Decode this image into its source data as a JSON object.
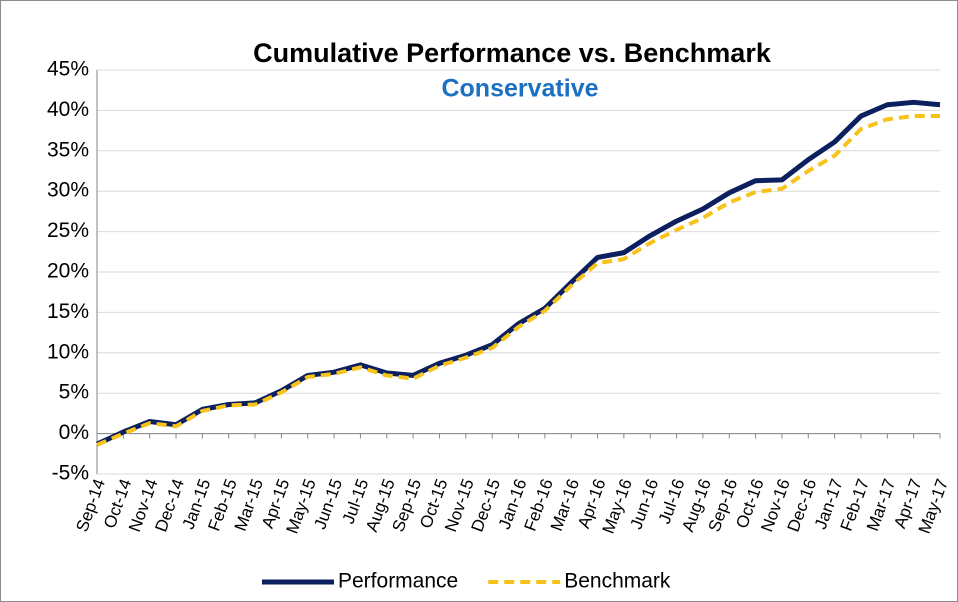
{
  "chart_data": {
    "type": "line",
    "title": "Cumulative Performance vs. Benchmark",
    "subtitle": "Conservative",
    "categories": [
      "Sep-14",
      "Oct-14",
      "Nov-14",
      "Dec-14",
      "Jan-15",
      "Feb-15",
      "Mar-15",
      "Apr-15",
      "May-15",
      "Jun-15",
      "Jul-15",
      "Aug-15",
      "Sep-15",
      "Oct-15",
      "Nov-15",
      "Dec-15",
      "Jan-16",
      "Feb-16",
      "Mar-16",
      "Apr-16",
      "May-16",
      "Jun-16",
      "Jul-16",
      "Aug-16",
      "Sep-16",
      "Oct-16",
      "Nov-16",
      "Dec-16",
      "Jan-17",
      "Feb-17",
      "Mar-17",
      "Apr-17",
      "May-17"
    ],
    "series": [
      {
        "name": "Performance",
        "color": "#0c1f5e",
        "line_style": "solid",
        "values": [
          -1.3,
          0.2,
          1.5,
          1.1,
          3.0,
          3.6,
          3.8,
          5.3,
          7.2,
          7.6,
          8.5,
          7.5,
          7.2,
          8.7,
          9.7,
          11.0,
          13.6,
          15.5,
          18.7,
          21.8,
          22.4,
          24.5,
          26.3,
          27.8,
          29.8,
          31.3,
          31.4,
          33.9,
          36.1,
          39.3,
          40.7,
          41.0,
          40.7
        ]
      },
      {
        "name": "Benchmark",
        "color": "#f7c21a",
        "line_style": "dashed",
        "values": [
          -1.4,
          0.0,
          1.3,
          0.9,
          2.8,
          3.5,
          3.6,
          5.1,
          7.0,
          7.4,
          8.2,
          7.2,
          6.8,
          8.4,
          9.4,
          10.6,
          13.2,
          15.2,
          18.3,
          21.1,
          21.6,
          23.6,
          25.2,
          26.7,
          28.6,
          29.9,
          30.3,
          32.5,
          34.4,
          37.7,
          38.9,
          39.3,
          39.3
        ]
      }
    ],
    "ylim": [
      -5,
      45
    ],
    "yticks": [
      {
        "value": -5,
        "label": "-5%"
      },
      {
        "value": 0,
        "label": "0%"
      },
      {
        "value": 5,
        "label": "5%"
      },
      {
        "value": 10,
        "label": "10%"
      },
      {
        "value": 15,
        "label": "15%"
      },
      {
        "value": 20,
        "label": "20%"
      },
      {
        "value": 25,
        "label": "25%"
      },
      {
        "value": 30,
        "label": "30%"
      },
      {
        "value": 35,
        "label": "35%"
      },
      {
        "value": 40,
        "label": "40%"
      },
      {
        "value": 45,
        "label": "45%"
      }
    ],
    "grid": true,
    "legend": "bottom"
  }
}
